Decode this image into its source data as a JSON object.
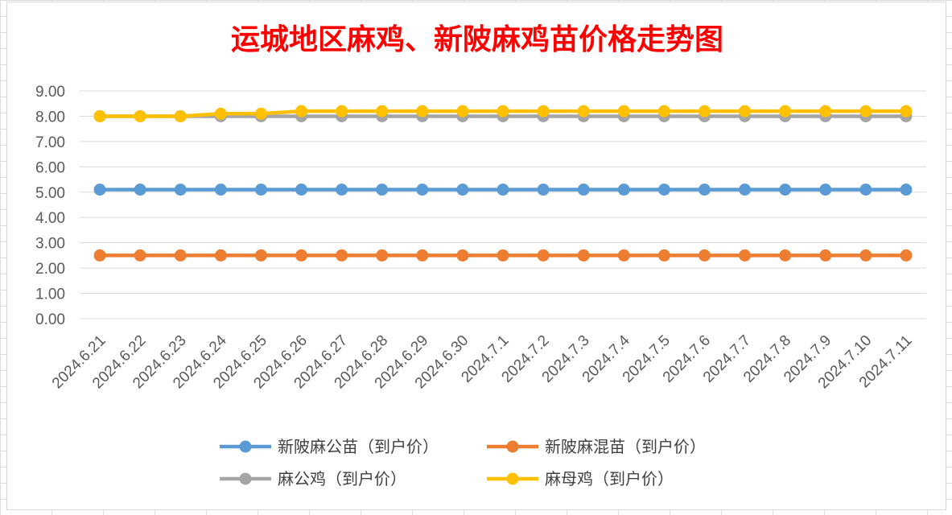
{
  "chart_data": {
    "type": "line",
    "title": "运城地区麻鸡、新陂麻鸡苗价格走势图",
    "xlabel": "",
    "ylabel": "",
    "ylim": [
      0,
      9
    ],
    "y_tick_labels": [
      "0.00",
      "1.00",
      "2.00",
      "3.00",
      "4.00",
      "5.00",
      "6.00",
      "7.00",
      "8.00",
      "9.00"
    ],
    "grid": true,
    "legend_position": "bottom",
    "categories": [
      "2024.6.21",
      "2024.6.22",
      "2024.6.23",
      "2024.6.24",
      "2024.6.25",
      "2024.6.26",
      "2024.6.27",
      "2024.6.28",
      "2024.6.29",
      "2024.6.30",
      "2024.7.1",
      "2024.7.2",
      "2024.7.3",
      "2024.7.4",
      "2024.7.5",
      "2024.7.6",
      "2024.7.7",
      "2024.7.8",
      "2024.7.9",
      "2024.7.10",
      "2024.7.11"
    ],
    "series": [
      {
        "name": "新陂麻公苗（到户价）",
        "color": "#5b9bd5",
        "values": [
          5.1,
          5.1,
          5.1,
          5.1,
          5.1,
          5.1,
          5.1,
          5.1,
          5.1,
          5.1,
          5.1,
          5.1,
          5.1,
          5.1,
          5.1,
          5.1,
          5.1,
          5.1,
          5.1,
          5.1,
          5.1
        ]
      },
      {
        "name": "新陂麻混苗（到户价）",
        "color": "#ed7d31",
        "values": [
          2.5,
          2.5,
          2.5,
          2.5,
          2.5,
          2.5,
          2.5,
          2.5,
          2.5,
          2.5,
          2.5,
          2.5,
          2.5,
          2.5,
          2.5,
          2.5,
          2.5,
          2.5,
          2.5,
          2.5,
          2.5
        ]
      },
      {
        "name": "麻公鸡（到户价）",
        "color": "#a5a5a5",
        "values": [
          8.0,
          8.0,
          8.0,
          8.0,
          8.0,
          8.0,
          8.0,
          8.0,
          8.0,
          8.0,
          8.0,
          8.0,
          8.0,
          8.0,
          8.0,
          8.0,
          8.0,
          8.0,
          8.0,
          8.0,
          8.0
        ]
      },
      {
        "name": "麻母鸡（到户价）",
        "color": "#ffc000",
        "values": [
          8.0,
          8.0,
          8.0,
          8.1,
          8.1,
          8.2,
          8.2,
          8.2,
          8.2,
          8.2,
          8.2,
          8.2,
          8.2,
          8.2,
          8.2,
          8.2,
          8.2,
          8.2,
          8.2,
          8.2,
          8.2
        ]
      }
    ]
  }
}
